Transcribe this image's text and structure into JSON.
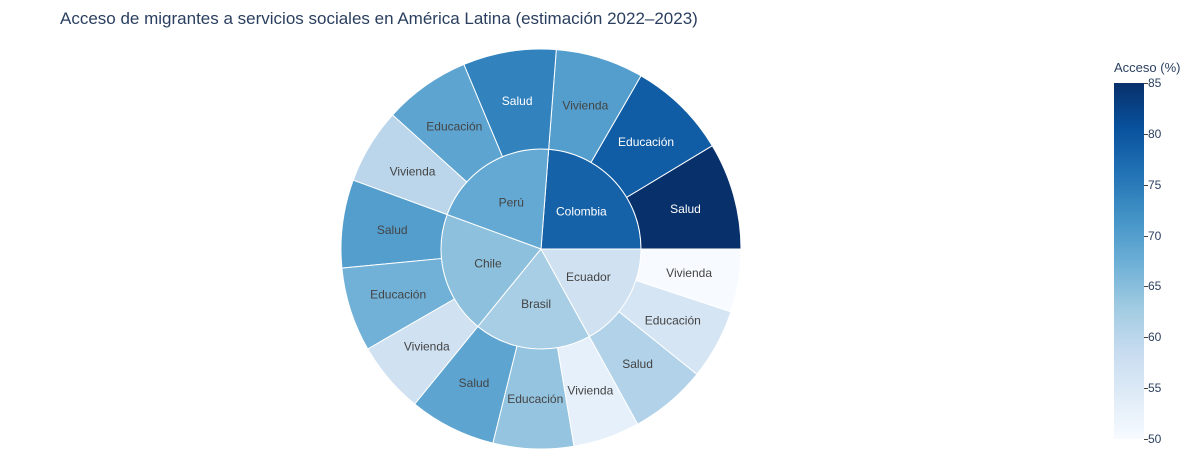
{
  "title": "Acceso de migrantes a servicios sociales en América Latina (estimación 2022–2023)",
  "colorbar": {
    "title": "Acceso (%)",
    "min": 50,
    "max": 85,
    "ticks": [
      "85",
      "80",
      "75",
      "70",
      "65",
      "60",
      "55",
      "50"
    ]
  },
  "chart_data": {
    "type": "sunburst",
    "title": "Acceso de migrantes a servicios sociales en América Latina (estimación 2022–2023)",
    "color_metric": "Acceso (%)",
    "colorscale": "Blues",
    "start_angle_deg": 0,
    "direction": "counterclockwise",
    "countries": [
      {
        "name": "Colombia",
        "value": 78.3,
        "children": [
          {
            "name": "Salud",
            "value": 85
          },
          {
            "name": "Educación",
            "value": 79
          },
          {
            "name": "Vivienda",
            "value": 70
          }
        ]
      },
      {
        "name": "Perú",
        "value": 68.3,
        "children": [
          {
            "name": "Salud",
            "value": 74
          },
          {
            "name": "Educación",
            "value": 69
          },
          {
            "name": "Vivienda",
            "value": 60
          }
        ]
      },
      {
        "name": "Chile",
        "value": 64.7,
        "children": [
          {
            "name": "Salud",
            "value": 70
          },
          {
            "name": "Educación",
            "value": 67
          },
          {
            "name": "Vivienda",
            "value": 57
          }
        ]
      },
      {
        "name": "Brasil",
        "value": 62,
        "children": [
          {
            "name": "Salud",
            "value": 69
          },
          {
            "name": "Educación",
            "value": 64
          },
          {
            "name": "Vivienda",
            "value": 53
          }
        ]
      },
      {
        "name": "Ecuador",
        "value": 57,
        "children": [
          {
            "name": "Salud",
            "value": 61
          },
          {
            "name": "Educación",
            "value": 56
          },
          {
            "name": "Vivienda",
            "value": 50
          }
        ]
      }
    ]
  }
}
